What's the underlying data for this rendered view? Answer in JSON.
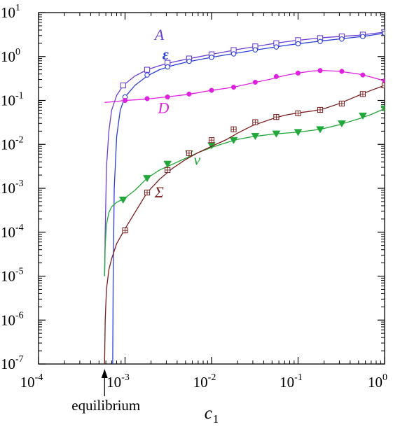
{
  "chart_data": {
    "type": "line",
    "title": "",
    "xlabel": "c",
    "xlabel_subscript": "1",
    "ylabel": "",
    "xscale": "log",
    "yscale": "log",
    "xlim": [
      0.0001,
      1
    ],
    "ylim": [
      1e-07,
      10
    ],
    "grid": false,
    "x_ticks": [
      {
        "base": "10",
        "exp": "-4"
      },
      {
        "base": "10",
        "exp": "-3"
      },
      {
        "base": "10",
        "exp": "-2"
      },
      {
        "base": "10",
        "exp": "-1"
      },
      {
        "base": "10",
        "exp": "0"
      }
    ],
    "y_ticks": [
      {
        "base": "10",
        "exp": "-7"
      },
      {
        "base": "10",
        "exp": "-6"
      },
      {
        "base": "10",
        "exp": "-5"
      },
      {
        "base": "10",
        "exp": "-4"
      },
      {
        "base": "10",
        "exp": "-3"
      },
      {
        "base": "10",
        "exp": "-2"
      },
      {
        "base": "10",
        "exp": "-1"
      },
      {
        "base": "10",
        "exp": "0"
      },
      {
        "base": "10",
        "exp": "1"
      }
    ],
    "annotation": {
      "text": "equilibrium",
      "x": 0.00058
    },
    "series": [
      {
        "name": "A",
        "color": "#6b3fd6",
        "marker": "square-open",
        "x": [
          0.00058,
          0.00059,
          0.00061,
          0.00065,
          0.0007,
          0.0008,
          0.00095,
          0.0013,
          0.0018,
          0.0025,
          0.0035,
          0.005,
          0.007,
          0.01,
          0.015,
          0.02,
          0.03,
          0.05,
          0.07,
          0.1,
          0.15,
          0.2,
          0.3,
          0.5,
          0.7,
          1
        ],
        "y": [
          1e-05,
          0.0001,
          0.003,
          0.02,
          0.06,
          0.13,
          0.22,
          0.36,
          0.5,
          0.62,
          0.74,
          0.86,
          0.98,
          1.12,
          1.3,
          1.45,
          1.65,
          1.95,
          2.15,
          2.35,
          2.55,
          2.7,
          2.85,
          3.05,
          3.3,
          3.6
        ],
        "marker_x": [
          0.00095,
          0.0018,
          0.0031,
          0.0055,
          0.01,
          0.018,
          0.032,
          0.056,
          0.1,
          0.18,
          0.32,
          0.56,
          1
        ],
        "marker_y": [
          0.22,
          0.5,
          0.72,
          0.9,
          1.12,
          1.4,
          1.7,
          2.0,
          2.35,
          2.62,
          2.87,
          3.15,
          3.6
        ]
      },
      {
        "name": "ε",
        "color": "#2b3fd6",
        "marker": "circle-open",
        "x": [
          0.00072,
          0.00073,
          0.00075,
          0.0008,
          0.00088,
          0.001,
          0.0013,
          0.0018,
          0.0025,
          0.0035,
          0.005,
          0.007,
          0.01,
          0.015,
          0.02,
          0.03,
          0.05,
          0.07,
          0.1,
          0.15,
          0.2,
          0.3,
          0.5,
          0.7,
          1
        ],
        "y": [
          1e-07,
          1e-05,
          0.001,
          0.015,
          0.06,
          0.12,
          0.22,
          0.36,
          0.5,
          0.62,
          0.74,
          0.84,
          0.96,
          1.1,
          1.2,
          1.38,
          1.6,
          1.78,
          1.95,
          2.15,
          2.3,
          2.5,
          2.8,
          3.05,
          3.4
        ],
        "marker_x": [
          0.001,
          0.0018,
          0.0031,
          0.0055,
          0.01,
          0.018,
          0.032,
          0.056,
          0.1,
          0.18,
          0.32,
          0.56,
          1
        ],
        "marker_y": [
          0.12,
          0.38,
          0.58,
          0.78,
          0.96,
          1.15,
          1.42,
          1.65,
          1.95,
          2.2,
          2.5,
          2.85,
          3.4
        ]
      },
      {
        "name": "D",
        "color": "#e020e0",
        "marker": "circle-filled",
        "x": [
          0.00058,
          0.0008,
          0.001,
          0.0015,
          0.002,
          0.003,
          0.005,
          0.007,
          0.01,
          0.015,
          0.02,
          0.03,
          0.05,
          0.07,
          0.1,
          0.15,
          0.2,
          0.3,
          0.5,
          0.7,
          1
        ],
        "y": [
          0.09,
          0.095,
          0.1,
          0.105,
          0.11,
          0.12,
          0.135,
          0.15,
          0.17,
          0.19,
          0.21,
          0.25,
          0.31,
          0.37,
          0.42,
          0.47,
          0.48,
          0.46,
          0.4,
          0.34,
          0.28
        ],
        "marker_x": [
          0.001,
          0.0018,
          0.0031,
          0.0055,
          0.01,
          0.018,
          0.032,
          0.056,
          0.1,
          0.18,
          0.32,
          0.56,
          1
        ],
        "marker_y": [
          0.1,
          0.11,
          0.12,
          0.14,
          0.17,
          0.2,
          0.26,
          0.35,
          0.42,
          0.48,
          0.46,
          0.38,
          0.28
        ]
      },
      {
        "name": "v",
        "color": "#22a83a",
        "marker": "triangle-down-filled",
        "x": [
          0.00058,
          0.00059,
          0.00061,
          0.00065,
          0.0007,
          0.0008,
          0.001,
          0.0013,
          0.0018,
          0.0025,
          0.0035,
          0.005,
          0.007,
          0.01,
          0.015,
          0.02,
          0.03,
          0.05,
          0.07,
          0.1,
          0.15,
          0.2,
          0.3,
          0.5,
          0.7,
          1
        ],
        "y": [
          1e-05,
          5e-05,
          0.00015,
          0.00028,
          0.00038,
          0.00048,
          0.0006,
          0.0009,
          0.0017,
          0.0026,
          0.0035,
          0.0048,
          0.0065,
          0.0085,
          0.011,
          0.013,
          0.015,
          0.017,
          0.018,
          0.019,
          0.021,
          0.023,
          0.028,
          0.038,
          0.048,
          0.065
        ],
        "marker_x": [
          0.00095,
          0.0018,
          0.0031,
          0.0055,
          0.01,
          0.018,
          0.032,
          0.056,
          0.1,
          0.18,
          0.32,
          0.56,
          1
        ],
        "marker_y": [
          0.00055,
          0.0017,
          0.0036,
          0.0062,
          0.0095,
          0.0125,
          0.0155,
          0.0175,
          0.019,
          0.022,
          0.03,
          0.045,
          0.065
        ]
      },
      {
        "name": "Σ",
        "color": "#7a1e1e",
        "marker": "square-plus",
        "x": [
          0.00058,
          0.00059,
          0.00061,
          0.00065,
          0.0007,
          0.0008,
          0.001,
          0.0013,
          0.0018,
          0.0025,
          0.0035,
          0.005,
          0.007,
          0.01,
          0.015,
          0.02,
          0.03,
          0.05,
          0.07,
          0.1,
          0.15,
          0.2,
          0.3,
          0.5,
          0.7,
          1
        ],
        "y": [
          1e-07,
          1e-06,
          5e-06,
          1.4e-05,
          2.5e-05,
          5.5e-05,
          0.00012,
          0.00028,
          0.0008,
          0.0016,
          0.0028,
          0.0045,
          0.0065,
          0.009,
          0.013,
          0.018,
          0.027,
          0.038,
          0.046,
          0.052,
          0.058,
          0.065,
          0.085,
          0.13,
          0.17,
          0.22
        ],
        "marker_x": [
          0.001,
          0.0018,
          0.0031,
          0.0055,
          0.01,
          0.018,
          0.032,
          0.056,
          0.1,
          0.18,
          0.32,
          0.56,
          1
        ],
        "marker_y": [
          0.00011,
          0.0008,
          0.0026,
          0.0063,
          0.0125,
          0.022,
          0.032,
          0.042,
          0.051,
          0.061,
          0.085,
          0.14,
          0.22
        ]
      }
    ]
  }
}
